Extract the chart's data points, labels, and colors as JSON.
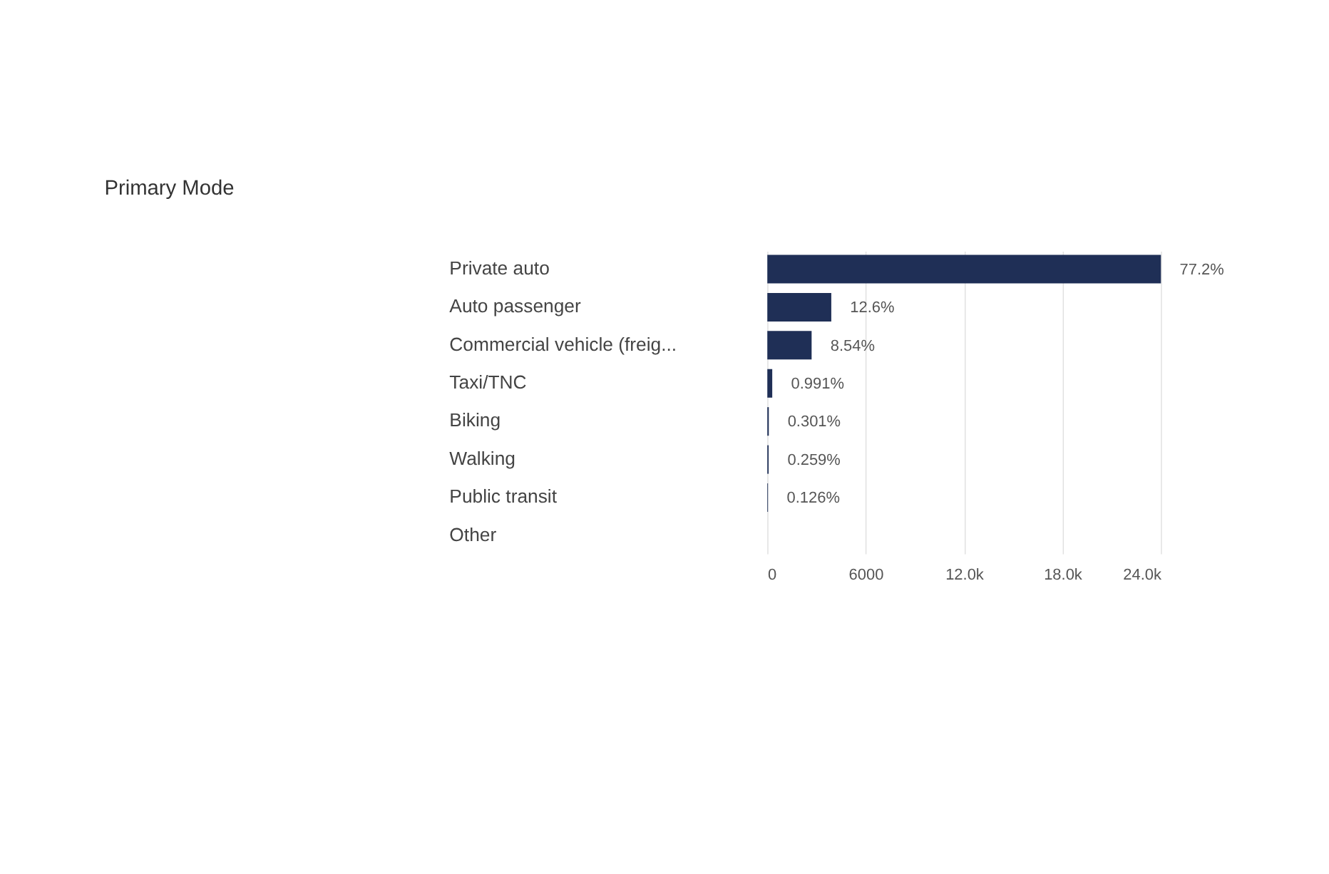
{
  "chart_data": {
    "type": "bar",
    "orientation": "horizontal",
    "title": "Primary Mode",
    "categories": [
      "Private auto",
      "Auto passenger",
      "Commercial vehicle (freig...",
      "Taxi/TNC",
      "Biking",
      "Walking",
      "Public transit",
      "Other"
    ],
    "values": [
      24000,
      3900,
      2700,
      300,
      90,
      80,
      40,
      null
    ],
    "annotations": [
      {
        "text": "77.2%",
        "x": 24000,
        "y": "Private auto"
      },
      {
        "text": "12.6%",
        "x": 3900,
        "y": "Auto passenger"
      },
      {
        "text": "8.54%",
        "x": 2700,
        "y": "Commercial vehicle (freig..."
      },
      {
        "text": "0.991%",
        "x": 300,
        "y": "Taxi/TNC"
      },
      {
        "text": "0.301%",
        "x": 90,
        "y": "Biking"
      },
      {
        "text": "0.259%",
        "x": 80,
        "y": "Walking"
      },
      {
        "text": "0.126%",
        "x": 40,
        "y": "Public transit"
      }
    ],
    "color": "#1f2f56",
    "xlim": [
      0,
      24000
    ],
    "xticks": [
      0,
      6000,
      {
        "value": 12000,
        "label": "12.0k"
      },
      {
        "value": 18000,
        "label": "18.0k"
      },
      {
        "value": 24000,
        "label": "24.0k"
      }
    ],
    "grid": "x"
  }
}
